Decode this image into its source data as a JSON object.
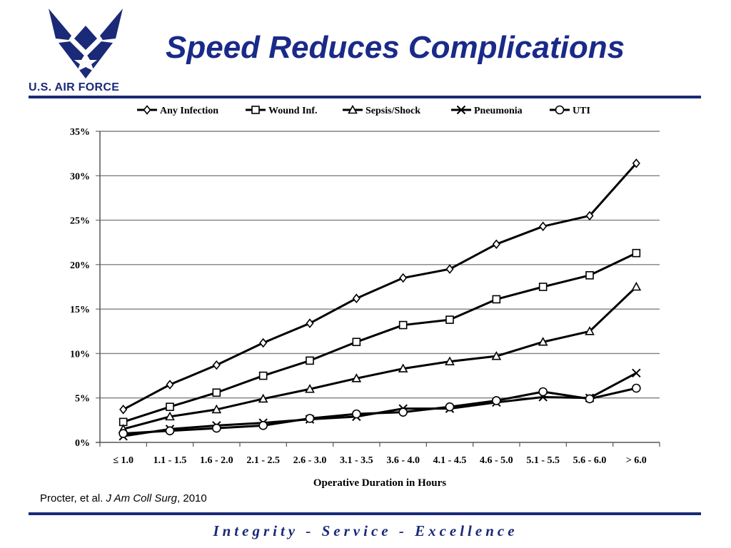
{
  "header": {
    "title": "Speed Reduces Complications",
    "logo_text": "U.S. AIR FORCE"
  },
  "citation": {
    "authors": "Procter, et al.",
    "journal": "J Am Coll Surg",
    "year": ", 2010"
  },
  "footer": {
    "motto": "Integrity - Service - Excellence"
  },
  "colors": {
    "brand": "#1a2a78",
    "series": "#000000",
    "grid": "#808080"
  },
  "chart_data": {
    "type": "line",
    "title": "",
    "xlabel": "Operative Duration in Hours",
    "ylabel": "",
    "categories": [
      "≤ 1.0",
      "1.1 - 1.5",
      "1.6 - 2.0",
      "2.1 - 2.5",
      "2.6 - 3.0",
      "3.1 - 3.5",
      "3.6 - 4.0",
      "4.1 - 4.5",
      "4.6 - 5.0",
      "5.1 - 5.5",
      "5.6 - 6.0",
      "> 6.0"
    ],
    "yticks": [
      "0%",
      "5%",
      "10%",
      "15%",
      "20%",
      "25%",
      "30%",
      "35%"
    ],
    "ylim": [
      0,
      35
    ],
    "grid": true,
    "legend_position": "top",
    "series": [
      {
        "name": "Any Infection",
        "marker": "diamond",
        "values": [
          3.7,
          6.5,
          8.7,
          11.2,
          13.4,
          16.2,
          18.5,
          19.5,
          22.3,
          24.3,
          25.5,
          31.4
        ]
      },
      {
        "name": "Wound Inf.",
        "marker": "square",
        "values": [
          2.3,
          4.0,
          5.6,
          7.5,
          9.2,
          11.3,
          13.2,
          13.8,
          16.1,
          17.5,
          18.8,
          21.3
        ]
      },
      {
        "name": "Sepsis/Shock",
        "marker": "triangle",
        "values": [
          1.5,
          2.9,
          3.7,
          4.9,
          6.0,
          7.2,
          8.3,
          9.1,
          9.7,
          11.3,
          12.5,
          17.5
        ]
      },
      {
        "name": "Pneumonia",
        "marker": "x",
        "values": [
          0.7,
          1.5,
          1.9,
          2.2,
          2.6,
          2.9,
          3.8,
          3.8,
          4.5,
          5.1,
          5.0,
          7.8
        ]
      },
      {
        "name": "UTI",
        "marker": "circle",
        "values": [
          1.0,
          1.3,
          1.6,
          1.9,
          2.7,
          3.2,
          3.4,
          4.0,
          4.7,
          5.7,
          4.9,
          6.1
        ]
      }
    ]
  }
}
